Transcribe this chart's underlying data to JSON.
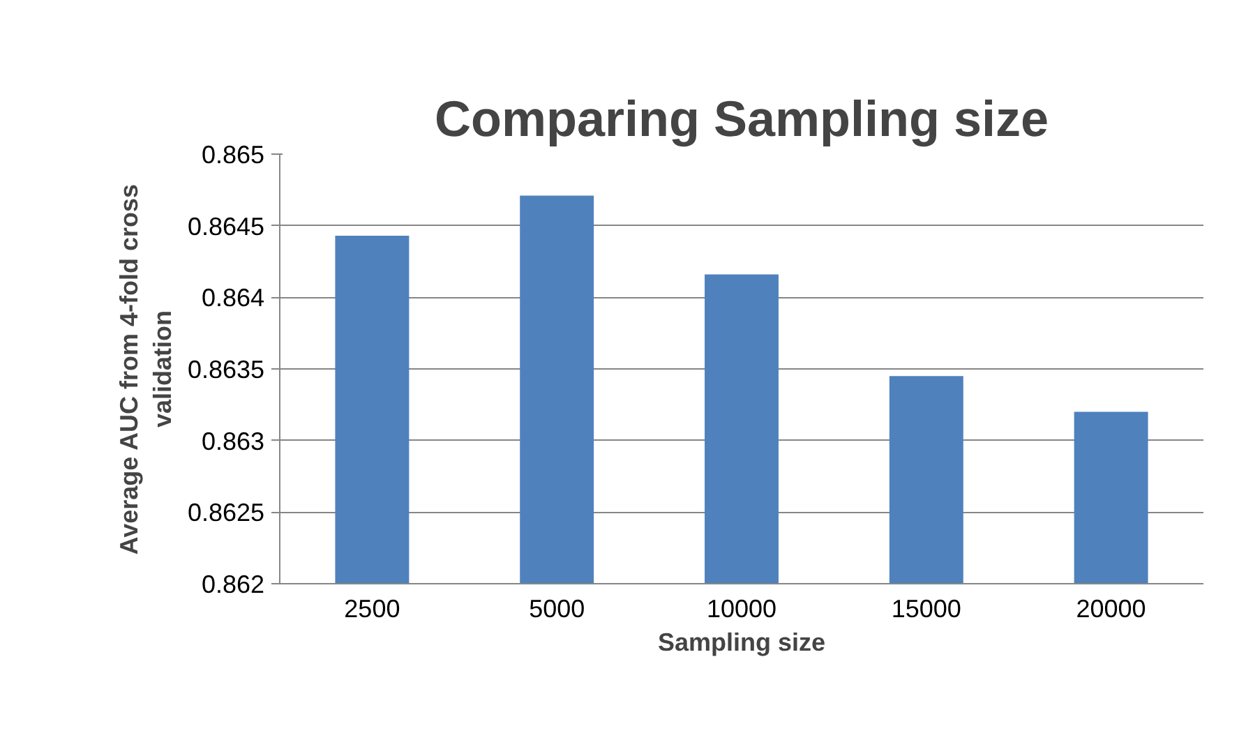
{
  "chart_data": {
    "type": "bar",
    "title": "Comparing Sampling size",
    "xlabel": "Sampling size",
    "ylabel": "Average AUC from 4-fold cross validation",
    "categories": [
      "2500",
      "5000",
      "10000",
      "15000",
      "20000"
    ],
    "values": [
      0.86443,
      0.86471,
      0.86416,
      0.86345,
      0.8632
    ],
    "color": "#4f81bd",
    "ylim": [
      0.862,
      0.865
    ],
    "yticks": [
      0.862,
      0.8625,
      0.863,
      0.8635,
      0.864,
      0.8645,
      0.865
    ],
    "grid": "y"
  }
}
